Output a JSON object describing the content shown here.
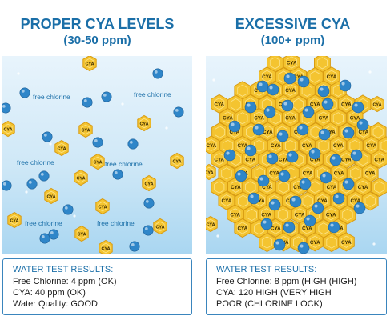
{
  "left_panel": {
    "title": "PROPER CYA LEVELS",
    "subtitle": "(30-50 ppm)",
    "molecule_label": "CYA",
    "chlorine_label": "free chlorine",
    "results": {
      "heading": "WATER TEST RESULTS:",
      "lines": [
        "Free Chlorine: 4 ppm (OK)",
        "CYA: 40 ppm (OK)",
        "Water Quality: GOOD"
      ]
    }
  },
  "right_panel": {
    "title": "EXCESSIVE CYA",
    "subtitle": "(100+ ppm)",
    "molecule_label": "CYA",
    "results": {
      "heading": "WATER TEST RESULTS:",
      "lines": [
        "Free Chlorine: 8 ppm (HIGH (HIGH)",
        "CYA: 120 HIGH (VERY HIGH",
        "POOR (CHLORINE LOCK)"
      ]
    }
  },
  "colors": {
    "title_blue": "#1b6fa8",
    "chlorine_ball": "#2f86c9",
    "cya_hexagon": "#f4c430",
    "cya_hexagon_stroke": "#d89b12",
    "water_light": "#e8f4fc",
    "water_dark": "#a9d6f1",
    "result_border": "#3a85bd"
  }
}
